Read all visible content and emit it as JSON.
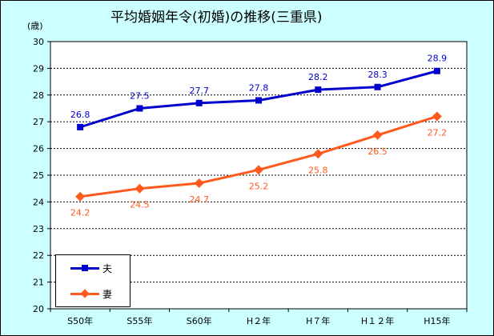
{
  "chart_data": {
    "type": "line",
    "title": "平均婚姻年令(初婚)の推移(三重県)",
    "ylabel": "(歳)",
    "xlabel": "",
    "categories": [
      "S50年",
      "S55年",
      "S60年",
      "H２年",
      "H７年",
      "H１２年",
      "H15年"
    ],
    "ylim": [
      20,
      30
    ],
    "yticks": [
      "20",
      "21",
      "22",
      "23",
      "24",
      "25",
      "26",
      "27",
      "28",
      "29",
      "30"
    ],
    "grid": true,
    "legend_position": "bottom-left",
    "series": [
      {
        "name": "夫",
        "color": "#0000cc",
        "marker": "square",
        "label_position": "above",
        "values": [
          26.8,
          27.5,
          27.7,
          27.8,
          28.2,
          28.3,
          28.9
        ],
        "labels": [
          "26.8",
          "27.5",
          "27.7",
          "27.8",
          "28.2",
          "28.3",
          "28.9"
        ]
      },
      {
        "name": "妻",
        "color": "#ff5a1e",
        "marker": "diamond",
        "label_position": "below",
        "values": [
          24.2,
          24.5,
          24.7,
          25.2,
          25.8,
          26.5,
          27.2
        ],
        "labels": [
          "24.2",
          "24.5",
          "24.7",
          "25.2",
          "25.8",
          "26.5",
          "27.2"
        ]
      }
    ]
  }
}
